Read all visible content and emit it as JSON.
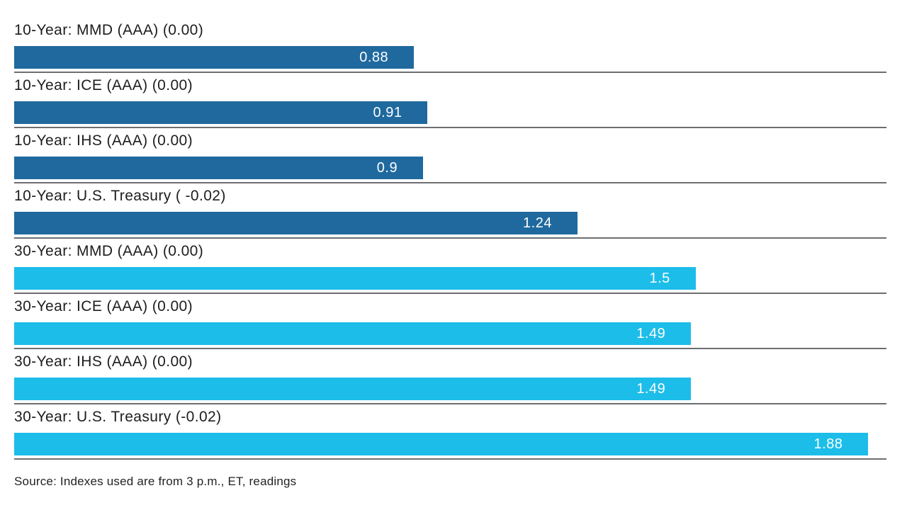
{
  "chart_data": {
    "type": "bar",
    "orientation": "horizontal",
    "title": "",
    "categories": [
      "10-Year: MMD (AAA) (0.00)",
      "10-Year: ICE (AAA) (0.00)",
      "10-Year: IHS (AAA) (0.00)",
      "10-Year: U.S. Treasury ( -0.02)",
      "30-Year: MMD (AAA) (0.00)",
      "30-Year: ICE (AAA) (0.00)",
      "30-Year: IHS (AAA) (0.00)",
      "30-Year: U.S. Treasury (-0.02)"
    ],
    "values": [
      0.88,
      0.91,
      0.9,
      1.24,
      1.5,
      1.49,
      1.49,
      1.88
    ],
    "value_labels": [
      "0.88",
      "0.91",
      "0.9",
      "1.24",
      "1.5",
      "1.49",
      "1.49",
      "1.88"
    ],
    "groups": [
      "10-Year",
      "10-Year",
      "10-Year",
      "10-Year",
      "30-Year",
      "30-Year",
      "30-Year",
      "30-Year"
    ],
    "group_colors": {
      "10-Year": "#1f699e",
      "30-Year": "#1cbde9"
    },
    "xlim": [
      0,
      1.92
    ],
    "grid": false,
    "legend": "none",
    "bar_value_position": "inside-right",
    "source_note": "Source: Indexes used are from 3 p.m., ET, readings"
  },
  "colors": {
    "dark_blue": "#1f699e",
    "light_blue": "#1cbde9",
    "separator": "#6d6e71",
    "label_text": "#1d1d1f",
    "value_text": "#ffffff",
    "background": "#ffffff"
  }
}
